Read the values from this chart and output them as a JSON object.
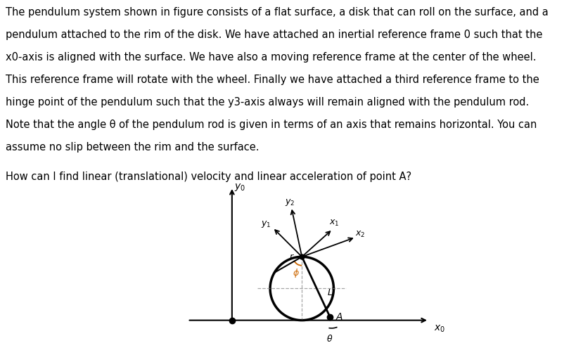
{
  "text_lines": [
    "The pendulum system shown in figure consists of a flat surface, a disk that can roll on the surface, and a",
    "pendulum attached to the rim of the disk. We have attached an inertial reference frame 0 such that the",
    "x0-axis is aligned with the surface. We have also a moving reference frame at the center of the wheel.",
    "This reference frame will rotate with the wheel. Finally we have attached a third reference frame to the",
    "hinge point of the pendulum such that the y3-axis always will remain aligned with the pendulum rod.",
    "Note that the angle θ of the pendulum rod is given in terms of an axis that remains horizontal. You can",
    "assume no slip between the rim and the surface."
  ],
  "question": "How can I find linear (translational) velocity and linear acceleration of point A?",
  "bg": "#ffffff",
  "axis_lw": 1.5,
  "circle_lw": 2.5,
  "arrow_lw": 1.3,
  "pend_lw": 2.0,
  "phi_color": "#cc6600",
  "text_fontsize": 10.5,
  "q_fontsize": 10.5,
  "label_fontsize": 10,
  "sub_fontsize": 9
}
